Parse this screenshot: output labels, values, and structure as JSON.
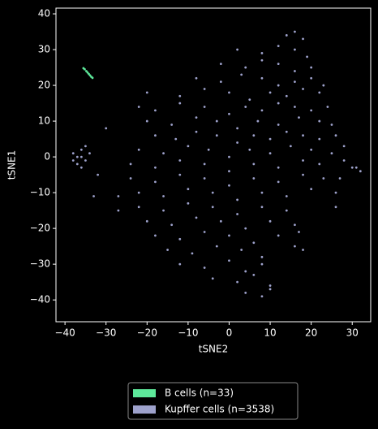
{
  "chart_data": {
    "type": "scatter",
    "xlabel": "tSNE2",
    "ylabel": "tSNE1",
    "xlim": [
      -42.2,
      34.5
    ],
    "ylim": [
      -46.1,
      41.6
    ],
    "xticks": [
      {
        "value": -40,
        "label": "−40"
      },
      {
        "value": -30,
        "label": "−30"
      },
      {
        "value": -20,
        "label": "−20"
      },
      {
        "value": -10,
        "label": "−10"
      },
      0,
      10,
      20,
      30
    ],
    "yticks": [
      {
        "value": -40,
        "label": "−40"
      },
      {
        "value": -30,
        "label": "−30"
      },
      {
        "value": -20,
        "label": "−20"
      },
      {
        "value": -10,
        "label": "−10"
      },
      0,
      10,
      20,
      30,
      40
    ],
    "legend": "below",
    "series": [
      {
        "name": "B cells (n=33)",
        "color": "#5de89a",
        "x": [
          -35.5,
          -35.2,
          -34.8,
          -34.5,
          -34.2,
          -33.9,
          -33.6,
          -33.3
        ],
        "y": [
          24.8,
          24.5,
          24,
          23.6,
          23.2,
          22.8,
          22.4,
          22.1
        ]
      },
      {
        "name": "Kupffer cells (n=3538)",
        "color": "#9ea2cc",
        "x": [
          -38,
          -37,
          -36,
          -35,
          -37,
          -36,
          -35,
          -34,
          -38,
          -36,
          -33,
          -32,
          -30,
          -27,
          -27,
          30,
          32,
          28,
          28,
          27,
          26,
          26,
          31,
          14,
          16,
          18,
          2,
          8,
          12,
          16,
          19,
          -2,
          4,
          8,
          12,
          16,
          20,
          -8,
          -2,
          3,
          8,
          12,
          16,
          20,
          23,
          -20,
          -12,
          -6,
          0,
          5,
          10,
          14,
          18,
          22,
          -22,
          -18,
          -12,
          -6,
          0,
          4,
          8,
          12,
          16,
          20,
          24,
          -20,
          -14,
          -8,
          -3,
          2,
          7,
          12,
          17,
          22,
          25,
          -18,
          -13,
          -8,
          -3,
          2,
          6,
          10,
          14,
          18,
          22,
          26,
          -22,
          -16,
          -10,
          -5,
          0,
          5,
          10,
          15,
          20,
          25,
          -24,
          -18,
          -12,
          -6,
          0,
          6,
          12,
          18,
          22,
          -24,
          -18,
          -12,
          -6,
          0,
          6,
          12,
          18,
          23,
          -22,
          -16,
          -10,
          -4,
          2,
          8,
          14,
          20,
          -22,
          -16,
          -10,
          -4,
          2,
          8,
          14,
          -20,
          -14,
          -8,
          -2,
          4,
          10,
          16,
          -18,
          -12,
          -6,
          0,
          6,
          12,
          17,
          -15,
          -9,
          -3,
          3,
          8,
          16,
          18,
          -12,
          -6,
          0,
          4,
          8,
          -4,
          2,
          6,
          10,
          4,
          8,
          10
        ],
        "y": [
          1,
          0,
          2,
          -1,
          -2,
          -3,
          3,
          1,
          -1,
          0,
          -11,
          -5,
          8,
          -11,
          -15,
          -3,
          -4,
          -1,
          3,
          -6,
          -10,
          -14,
          -3,
          34,
          35,
          33,
          30,
          29,
          31,
          30,
          28,
          26,
          25,
          27,
          26,
          24,
          25,
          22,
          21,
          23,
          22,
          20,
          21,
          22,
          20,
          18,
          17,
          19,
          18,
          16,
          18,
          17,
          19,
          18,
          14,
          13,
          15,
          14,
          12,
          14,
          13,
          15,
          14,
          13,
          14,
          10,
          9,
          11,
          10,
          8,
          10,
          9,
          11,
          10,
          9,
          6,
          5,
          7,
          6,
          4,
          6,
          5,
          7,
          6,
          5,
          6,
          2,
          1,
          3,
          2,
          0,
          2,
          1,
          3,
          2,
          1,
          -2,
          -3,
          -1,
          -2,
          -4,
          -2,
          -3,
          -1,
          -2,
          -6,
          -7,
          -5,
          -6,
          -8,
          -6,
          -7,
          -5,
          -6,
          -10,
          -11,
          -9,
          -10,
          -12,
          -10,
          -11,
          -9,
          -14,
          -15,
          -13,
          -14,
          -16,
          -14,
          -15,
          -18,
          -19,
          -17,
          -18,
          -20,
          -18,
          -19,
          -22,
          -23,
          -21,
          -22,
          -24,
          -22,
          -21,
          -26,
          -27,
          -25,
          -26,
          -28,
          -25,
          -26,
          -30,
          -31,
          -29,
          -32,
          -30,
          -34,
          -35,
          -33,
          -36,
          -38,
          -39,
          -37
        ]
      }
    ]
  }
}
